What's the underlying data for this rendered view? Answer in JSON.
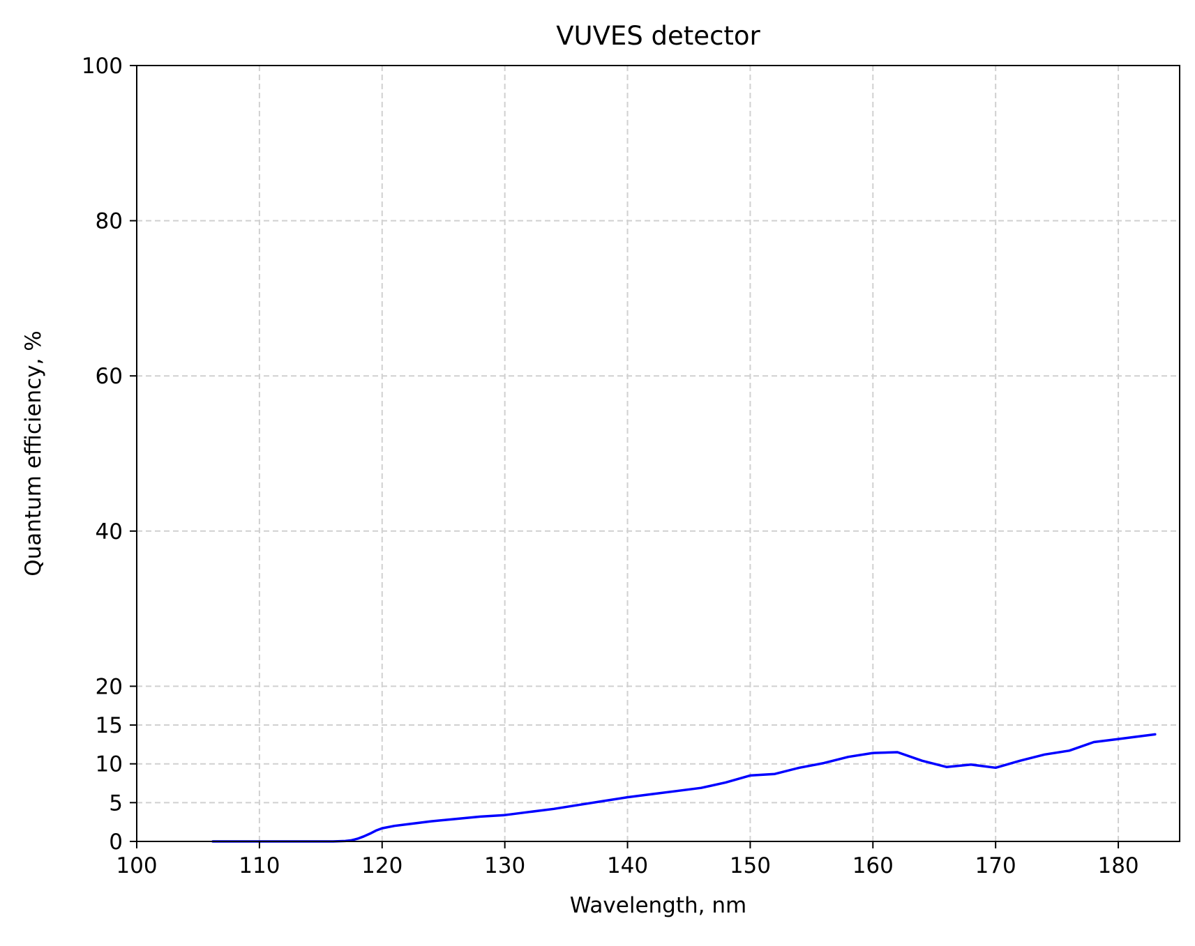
{
  "chart_data": {
    "type": "line",
    "title": "VUVES detector",
    "xlabel": "Wavelength, nm",
    "ylabel": "Quantum efficiency, %",
    "xlim": [
      100,
      185
    ],
    "ylim": [
      0,
      100
    ],
    "xticks": [
      100,
      110,
      120,
      130,
      140,
      150,
      160,
      170,
      180
    ],
    "yticks": [
      0,
      5,
      10,
      15,
      20,
      40,
      60,
      80,
      100
    ],
    "grid": true,
    "grid_style": "dashed",
    "legend": "none",
    "series": [
      {
        "color": "#0000ff",
        "x": [
          106.2,
          110,
          114,
          116,
          117,
          117.5,
          118,
          118.5,
          119,
          119.5,
          120,
          121,
          122,
          124,
          126,
          128,
          130,
          132,
          134,
          136,
          138,
          140,
          142,
          144,
          146,
          148,
          150,
          152,
          154,
          156,
          158,
          160,
          162,
          164,
          166,
          168,
          170,
          172,
          174,
          176,
          178,
          180,
          182,
          183
        ],
        "y": [
          0,
          0,
          0,
          0,
          0.05,
          0.15,
          0.35,
          0.65,
          1.0,
          1.4,
          1.7,
          2.0,
          2.2,
          2.6,
          2.9,
          3.2,
          3.4,
          3.8,
          4.2,
          4.7,
          5.2,
          5.7,
          6.1,
          6.5,
          6.9,
          7.6,
          8.5,
          8.7,
          9.5,
          10.1,
          10.9,
          11.4,
          11.5,
          10.4,
          9.6,
          9.9,
          9.5,
          10.4,
          11.2,
          11.7,
          12.8,
          13.2,
          13.6,
          13.8
        ]
      }
    ]
  }
}
